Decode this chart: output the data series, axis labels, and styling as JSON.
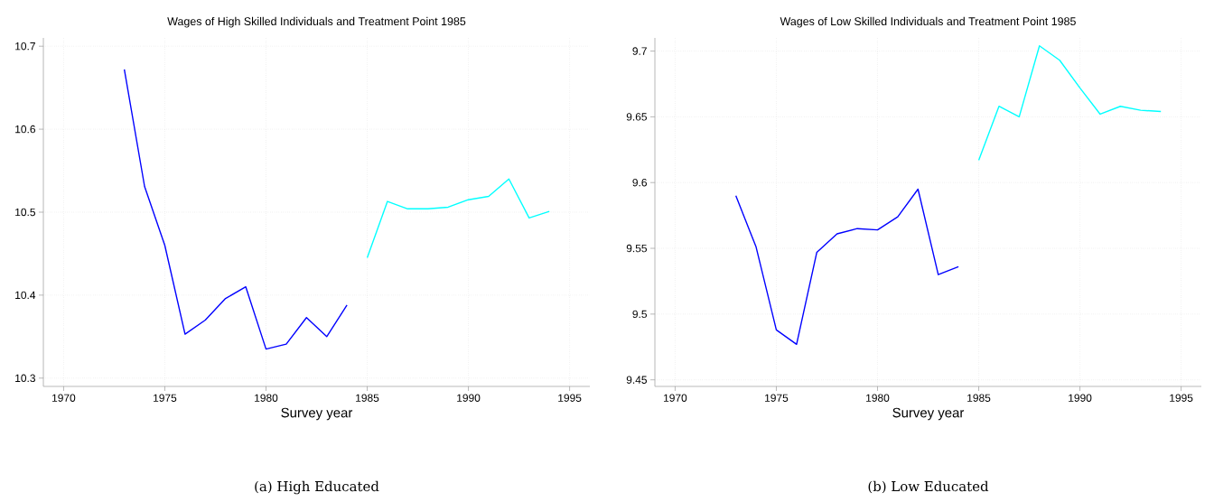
{
  "chart_data": [
    {
      "type": "line",
      "title": "Wages of High Skilled Individuals and Treatment Point 1985",
      "xlabel": "Survey year",
      "xlim": [
        1969,
        1996
      ],
      "xticks": [
        1970,
        1975,
        1980,
        1985,
        1990,
        1995
      ],
      "ylim": [
        10.29,
        10.71
      ],
      "yticks": [
        10.3,
        10.4,
        10.5,
        10.6,
        10.7
      ],
      "grid": true,
      "annotations": [
        "(a) High Educated"
      ],
      "series": [
        {
          "color": "#0000ff",
          "x": [
            1973,
            1974,
            1975,
            1976,
            1977,
            1978,
            1979,
            1980,
            1981,
            1982,
            1983,
            1984
          ],
          "values": [
            10.672,
            10.531,
            10.46,
            10.353,
            10.37,
            10.396,
            10.41,
            10.335,
            10.341,
            10.373,
            10.35,
            10.388
          ]
        },
        {
          "color": "#00ffff",
          "x": [
            1985,
            1986,
            1987,
            1988,
            1989,
            1990,
            1991,
            1992,
            1993,
            1994
          ],
          "values": [
            10.445,
            10.513,
            10.504,
            10.504,
            10.506,
            10.515,
            10.519,
            10.54,
            10.493,
            10.501
          ]
        }
      ]
    },
    {
      "type": "line",
      "title": "Wages of Low Skilled Individuals and Treatment Point 1985",
      "xlabel": "Survey year",
      "xlim": [
        1969,
        1996
      ],
      "xticks": [
        1970,
        1975,
        1980,
        1985,
        1990,
        1995
      ],
      "ylim": [
        9.445,
        9.71
      ],
      "yticks": [
        9.45,
        9.5,
        9.55,
        9.6,
        9.65,
        9.7
      ],
      "grid": true,
      "annotations": [
        "(b) Low Educated"
      ],
      "series": [
        {
          "color": "#0000ff",
          "x": [
            1973,
            1974,
            1975,
            1976,
            1977,
            1978,
            1979,
            1980,
            1981,
            1982,
            1983,
            1984
          ],
          "values": [
            9.59,
            9.551,
            9.488,
            9.477,
            9.547,
            9.561,
            9.565,
            9.564,
            9.574,
            9.595,
            9.53,
            9.536
          ]
        },
        {
          "color": "#00ffff",
          "x": [
            1985,
            1986,
            1987,
            1988,
            1989,
            1990,
            1991,
            1992,
            1993,
            1994
          ],
          "values": [
            9.617,
            9.658,
            9.65,
            9.704,
            9.693,
            9.672,
            9.652,
            9.658,
            9.655,
            9.654
          ]
        }
      ]
    }
  ]
}
